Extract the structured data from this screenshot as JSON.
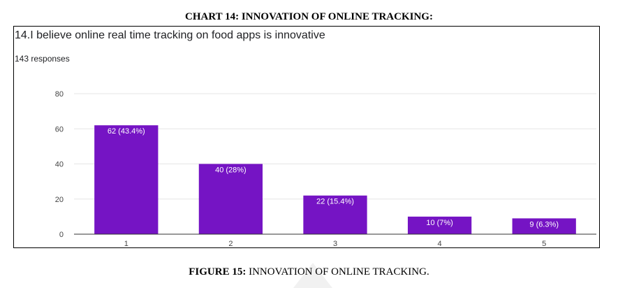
{
  "heading": "CHART 14: INNOVATION OF ONLINE TRACKING:",
  "question": "14.I believe online real time tracking on food apps is innovative",
  "responses": "143 responses",
  "caption": {
    "lead": "FIGURE 15:",
    "rest": " INNOVATION OF ONLINE TRACKING."
  },
  "colors": {
    "bar": "#7514c4",
    "grid": "#e6e6e6",
    "axis": "#333333",
    "bar_label": "#ffffff",
    "watermark": "#f1f1f1"
  },
  "chart_data": {
    "type": "bar",
    "categories": [
      "1",
      "2",
      "3",
      "4",
      "5"
    ],
    "values": [
      62,
      40,
      22,
      10,
      9
    ],
    "data_labels": [
      "62 (43.4%)",
      "40 (28%)",
      "22 (15.4%)",
      "10 (7%)",
      "9 (6.3%)"
    ],
    "yticks": [
      0,
      20,
      40,
      60,
      80
    ],
    "ylim": [
      0,
      80
    ],
    "grid": true,
    "legend": "none"
  }
}
